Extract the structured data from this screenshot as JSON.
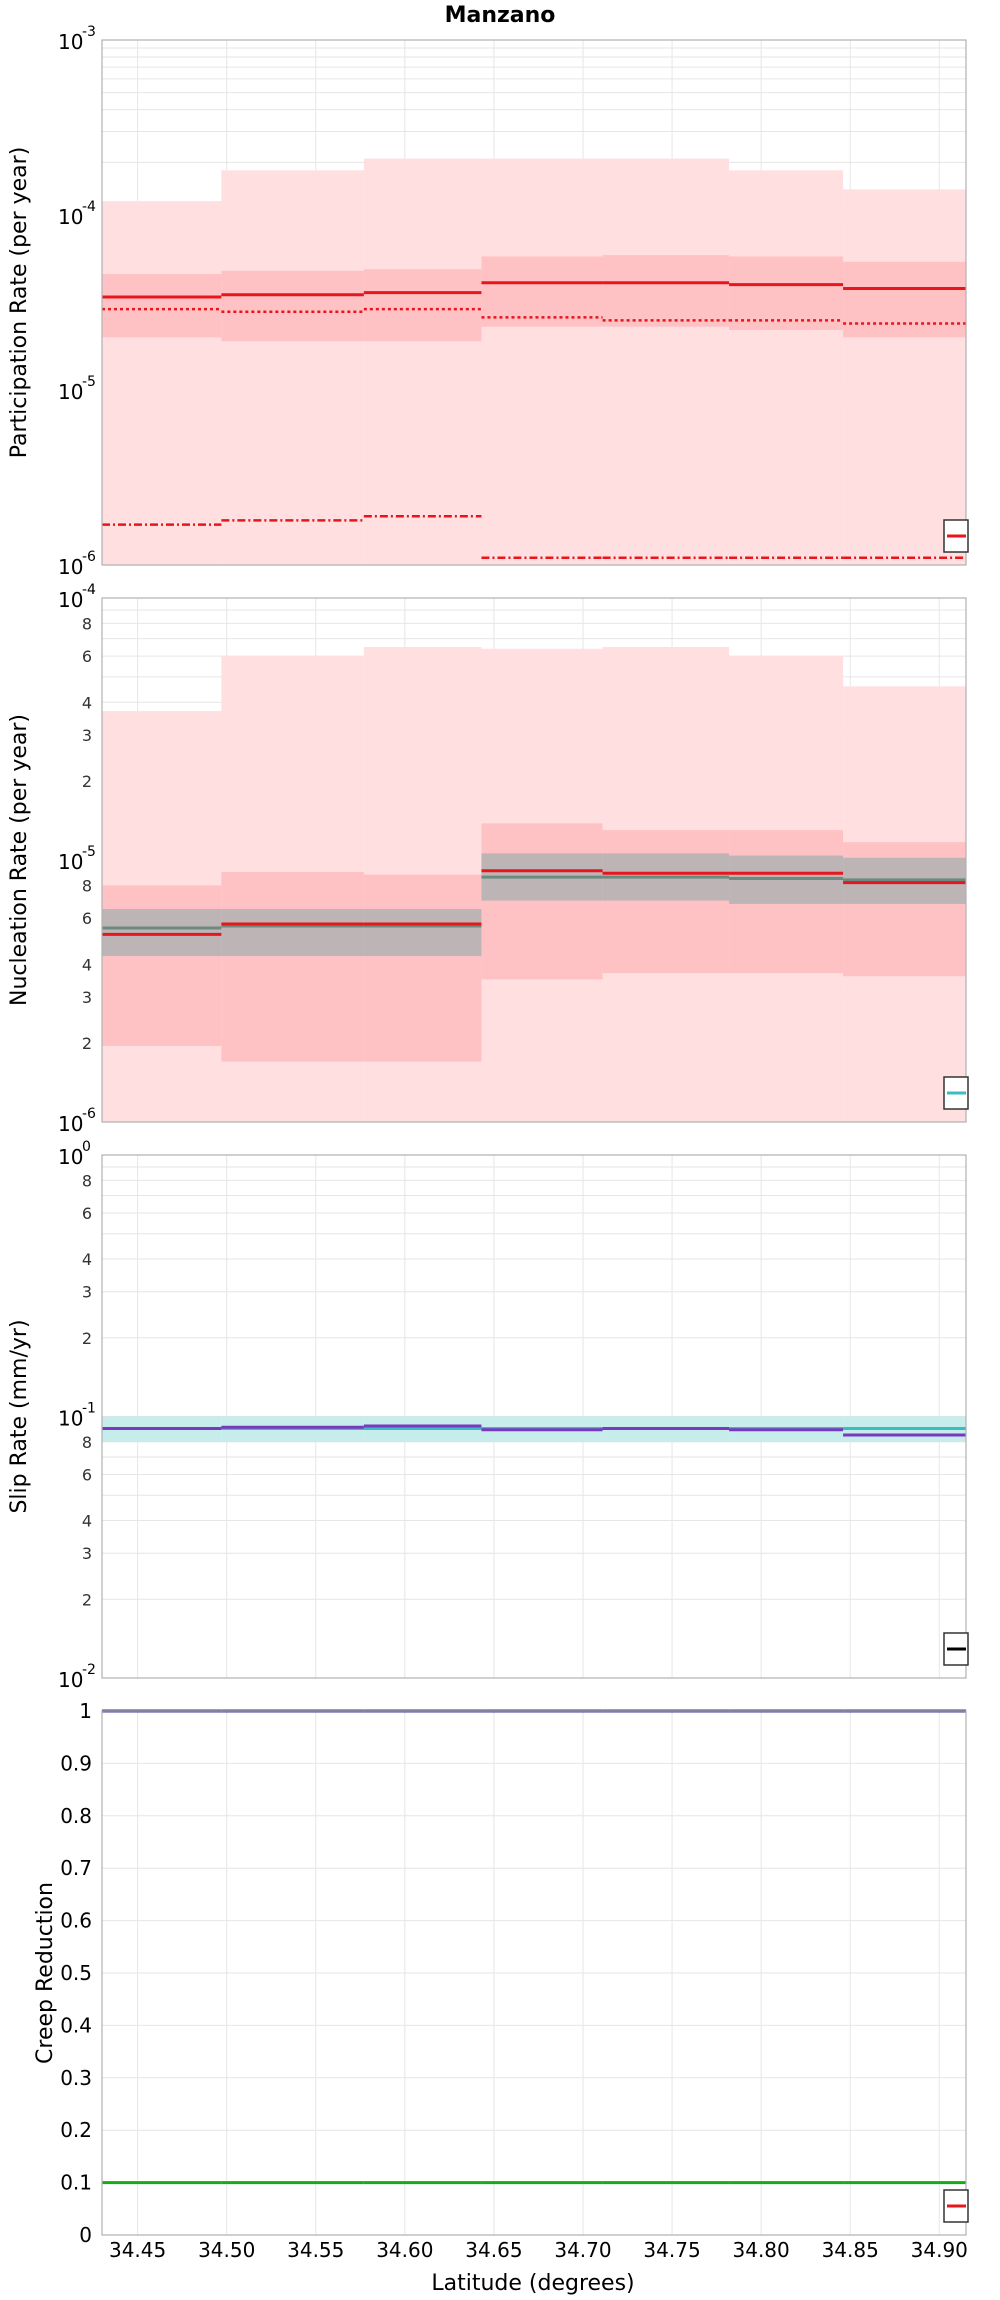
{
  "title": "Manzano",
  "xlabel": "Latitude (degrees)",
  "xlim": [
    34.43,
    34.915
  ],
  "x_ticks": [
    "34.45",
    "34.50",
    "34.55",
    "34.60",
    "34.65",
    "34.70",
    "34.75",
    "34.80",
    "34.85",
    "34.90"
  ],
  "x_tick_values": [
    34.45,
    34.5,
    34.55,
    34.6,
    34.65,
    34.7,
    34.75,
    34.8,
    34.85,
    34.9
  ],
  "bins": [
    34.43,
    34.497,
    34.577,
    34.643,
    34.711,
    34.782,
    34.846,
    34.915
  ],
  "colors": {
    "red": "#e8151d",
    "pink_light": "#ffdfe0",
    "pink_mid": "#ffc2c4",
    "gray_band": "#bdb5b5",
    "gray_line": "#6d8a80",
    "cyan_band": "#c6ecec",
    "cyan": "#3bbcc2",
    "purple": "#7a37c0",
    "navy": "#3a3a8f",
    "green": "#1aa81a",
    "grid": "#e6e6e6"
  },
  "chart_data": [
    {
      "type": "line",
      "ylabel": "Participation Rate (per year)",
      "scale": "log",
      "ylim": [
        1e-06,
        0.001
      ],
      "y_tick_labels": [
        {
          "base": "10",
          "exp": "-6"
        },
        {
          "base": "10",
          "exp": "-5"
        },
        {
          "base": "10",
          "exp": "-4"
        },
        {
          "base": "10",
          "exp": "-3"
        }
      ],
      "bands": [
        {
          "color": "pink_light",
          "lower": [
            1e-06,
            1e-06,
            1e-06,
            1e-06,
            1e-06,
            1e-06,
            1e-06
          ],
          "upper": [
            0.00012,
            0.00018,
            0.00021,
            0.00021,
            0.00021,
            0.00018,
            0.00014
          ]
        },
        {
          "color": "pink_mid",
          "lower": [
            2e-05,
            1.9e-05,
            1.9e-05,
            2.3e-05,
            2.3e-05,
            2.2e-05,
            2e-05
          ],
          "upper": [
            4.6e-05,
            4.8e-05,
            4.9e-05,
            5.8e-05,
            5.9e-05,
            5.8e-05,
            5.4e-05
          ]
        }
      ],
      "series": [
        {
          "style": "solid",
          "color": "red",
          "values": [
            3.4e-05,
            3.5e-05,
            3.6e-05,
            4.1e-05,
            4.1e-05,
            4e-05,
            3.8e-05
          ]
        },
        {
          "style": "dotted",
          "color": "red",
          "values": [
            2.9e-05,
            2.8e-05,
            2.9e-05,
            2.6e-05,
            2.5e-05,
            2.5e-05,
            2.4e-05
          ]
        },
        {
          "style": "dashdot",
          "color": "red",
          "values": [
            1.7e-06,
            1.8e-06,
            1.9e-06,
            1.1e-06,
            1.1e-06,
            1.1e-06,
            1.1e-06
          ]
        }
      ],
      "legend_color": "red"
    },
    {
      "type": "line",
      "ylabel": "Nucleation Rate (per year)",
      "scale": "log",
      "ylim": [
        1e-06,
        0.0001
      ],
      "y_tick_labels": [
        {
          "base": "10",
          "exp": "-6"
        },
        {
          "base": "10",
          "exp": "-5"
        },
        {
          "base": "10",
          "exp": "-4"
        }
      ],
      "minor_tick_labels": [
        "2",
        "3",
        "4",
        "6",
        "8"
      ],
      "bands": [
        {
          "color": "pink_light",
          "lower": [
            1e-06,
            1e-06,
            1e-06,
            1e-06,
            1e-06,
            1e-06,
            1e-06
          ],
          "upper": [
            3.7e-05,
            6e-05,
            6.5e-05,
            6.4e-05,
            6.5e-05,
            6e-05,
            4.6e-05
          ]
        },
        {
          "color": "pink_mid",
          "lower": [
            1.95e-06,
            1.7e-06,
            1.7e-06,
            3.5e-06,
            3.7e-06,
            3.7e-06,
            3.6e-06
          ],
          "upper": [
            8e-06,
            9e-06,
            8.8e-06,
            1.38e-05,
            1.3e-05,
            1.3e-05,
            1.17e-05
          ]
        },
        {
          "color": "gray_band",
          "lower": [
            4.3e-06,
            4.3e-06,
            4.3e-06,
            7e-06,
            7e-06,
            6.8e-06,
            6.8e-06
          ],
          "upper": [
            6.5e-06,
            6.5e-06,
            6.5e-06,
            1.06e-05,
            1.06e-05,
            1.04e-05,
            1.02e-05
          ]
        }
      ],
      "series": [
        {
          "style": "solid",
          "color": "gray_line",
          "values": [
            5.5e-06,
            5.6e-06,
            5.6e-06,
            8.6e-06,
            8.6e-06,
            8.5e-06,
            8.4e-06
          ]
        },
        {
          "style": "solid",
          "color": "red",
          "values": [
            5.2e-06,
            5.7e-06,
            5.7e-06,
            9.1e-06,
            8.9e-06,
            8.9e-06,
            8.2e-06
          ]
        }
      ],
      "legend_color": "cyan"
    },
    {
      "type": "line",
      "ylabel": "Slip Rate (mm/yr)",
      "scale": "log",
      "ylim": [
        0.01,
        1
      ],
      "y_tick_labels": [
        {
          "base": "10",
          "exp": "-2"
        },
        {
          "base": "10",
          "exp": "-1"
        },
        {
          "base": "10",
          "exp": "0"
        }
      ],
      "minor_tick_labels": [
        "2",
        "3",
        "4",
        "6",
        "8"
      ],
      "bands": [
        {
          "color": "cyan_band",
          "lower": [
            0.08,
            0.08,
            0.08,
            0.08,
            0.08,
            0.08,
            0.08
          ],
          "upper": [
            0.1,
            0.1,
            0.1,
            0.1,
            0.1,
            0.1,
            0.1
          ]
        }
      ],
      "series": [
        {
          "style": "solid",
          "color": "cyan",
          "values": [
            0.09,
            0.09,
            0.09,
            0.09,
            0.09,
            0.09,
            0.09
          ]
        },
        {
          "style": "solid",
          "color": "purple",
          "values": [
            0.09,
            0.091,
            0.092,
            0.089,
            0.09,
            0.089,
            0.085
          ]
        }
      ],
      "legend_color": "#000000"
    },
    {
      "type": "line",
      "ylabel": "Creep Reduction",
      "scale": "linear",
      "ylim": [
        0,
        1
      ],
      "y_ticks": [
        "0",
        "0.1",
        "0.2",
        "0.3",
        "0.4",
        "0.5",
        "0.6",
        "0.7",
        "0.8",
        "0.9",
        "1"
      ],
      "y_tick_values": [
        0,
        0.1,
        0.2,
        0.3,
        0.4,
        0.5,
        0.6,
        0.7,
        0.8,
        0.9,
        1
      ],
      "bands": [],
      "series": [
        {
          "style": "solid",
          "color": "navy",
          "values": [
            1,
            1,
            1,
            1,
            1,
            1,
            1
          ]
        },
        {
          "style": "solid",
          "color": "green",
          "values": [
            0.1,
            0.1,
            0.1,
            0.1,
            0.1,
            0.1,
            0.1
          ]
        }
      ],
      "legend_color": "red"
    }
  ]
}
